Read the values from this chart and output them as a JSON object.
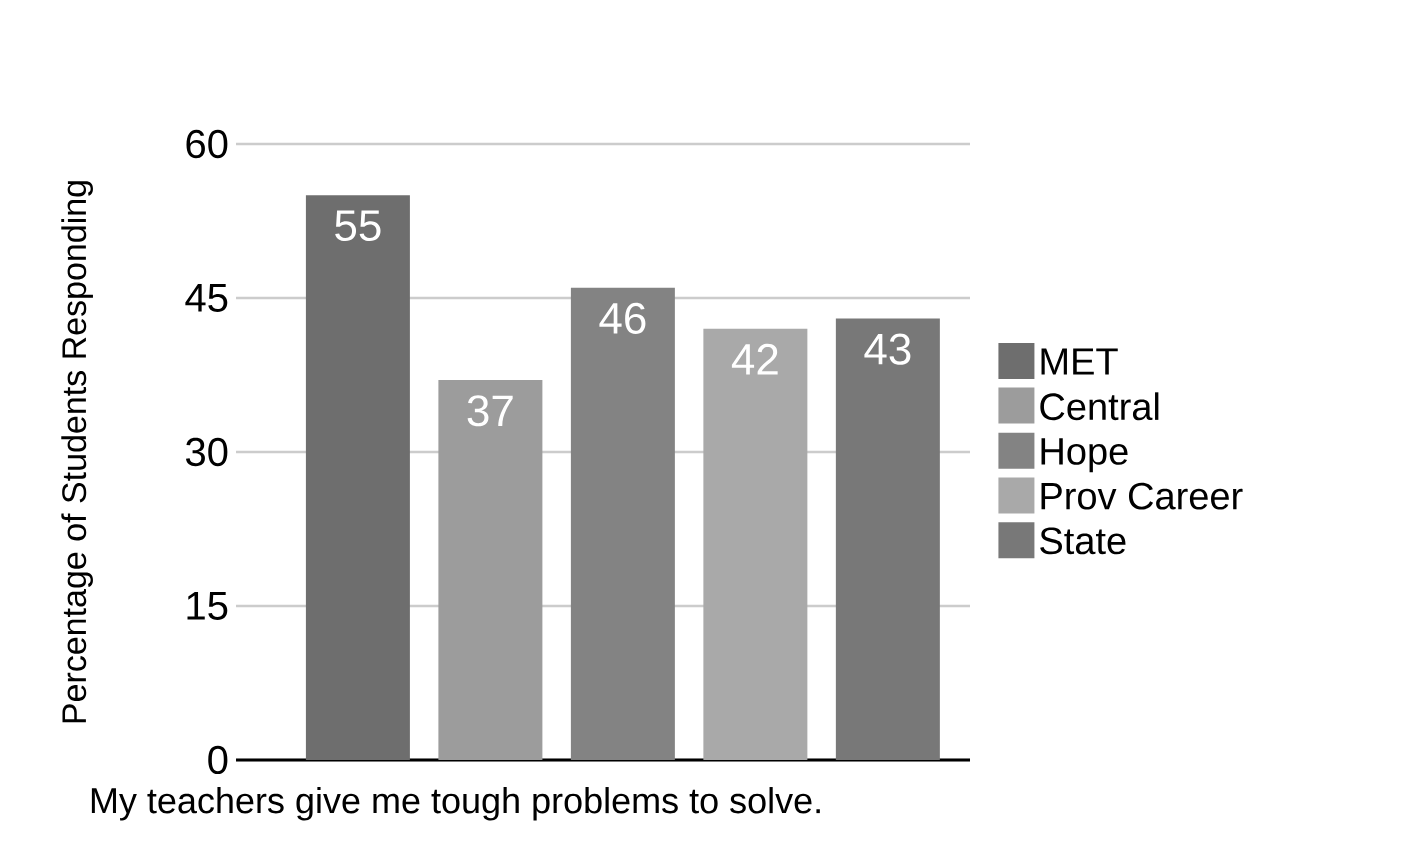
{
  "chart_data": {
    "type": "bar",
    "xlabel": "My teachers give me tough problems to solve.",
    "ylabel": "Percentage of Students Responding",
    "categories": [
      null,
      null,
      null,
      null,
      null
    ],
    "series": [
      {
        "name": "MET",
        "color": "#6e6e6e",
        "values": [
          55,
          null,
          null,
          null,
          null
        ]
      },
      {
        "name": "Central",
        "color": "#9c9c9c",
        "values": [
          null,
          37,
          null,
          null,
          null
        ]
      },
      {
        "name": "Hope",
        "color": "#838383",
        "values": [
          null,
          null,
          46,
          null,
          null
        ]
      },
      {
        "name": "Prov Career",
        "color": "#a9a9a9",
        "values": [
          null,
          null,
          null,
          42,
          null
        ]
      },
      {
        "name": "State",
        "color": "#787878",
        "values": [
          null,
          null,
          null,
          null,
          43
        ]
      }
    ],
    "ylim": [
      0,
      60
    ],
    "yticks": [
      0,
      15,
      30,
      45,
      60
    ],
    "grid": "y",
    "legend": "right",
    "data_labels": true
  }
}
